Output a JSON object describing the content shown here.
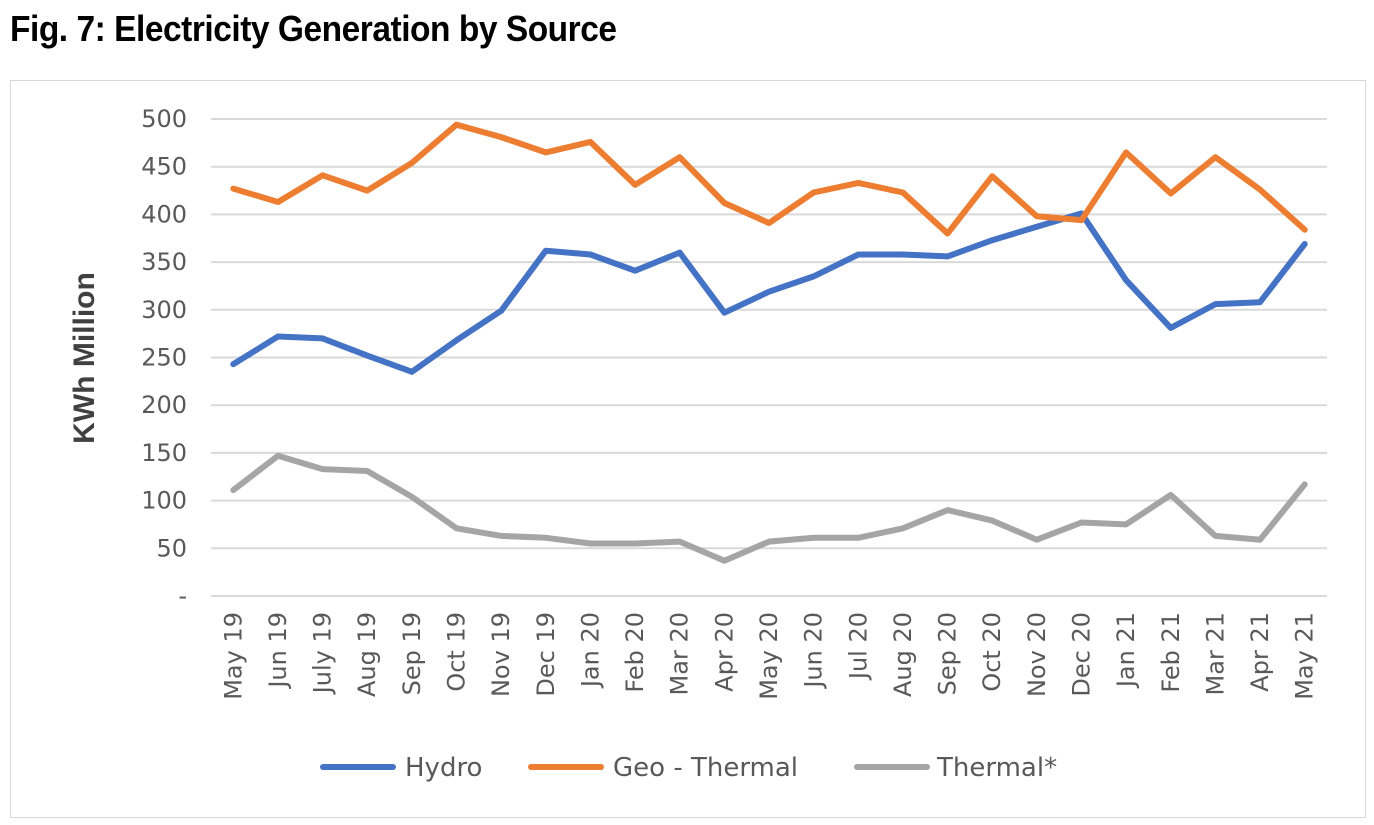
{
  "title": "Fig. 7: Electricity Generation by Source",
  "chart_data": {
    "type": "line",
    "title": "Fig. 7: Electricity Generation by Source",
    "xlabel": "",
    "ylabel": "KWh Million",
    "ylim": [
      0,
      500
    ],
    "yticks": [
      {
        "value": 0,
        "label": "-"
      },
      {
        "value": 50,
        "label": "50"
      },
      {
        "value": 100,
        "label": "100"
      },
      {
        "value": 150,
        "label": "150"
      },
      {
        "value": 200,
        "label": "200"
      },
      {
        "value": 250,
        "label": "250"
      },
      {
        "value": 300,
        "label": "300"
      },
      {
        "value": 350,
        "label": "350"
      },
      {
        "value": 400,
        "label": "400"
      },
      {
        "value": 450,
        "label": "450"
      },
      {
        "value": 500,
        "label": "500"
      }
    ],
    "grid": true,
    "legend_position": "bottom",
    "categories": [
      "May 19",
      "Jun 19",
      "July 19",
      "Aug 19",
      "Sep 19",
      "Oct 19",
      "Nov 19",
      "Dec 19",
      "Jan 20",
      "Feb 20",
      "Mar 20",
      "Apr 20",
      "May 20",
      "Jun 20",
      "Jul 20",
      "Aug 20",
      "Sep 20",
      "Oct 20",
      "Nov 20",
      "Dec 20",
      "Jan 21",
      "Feb 21",
      "Mar 21",
      "Apr 21",
      "May 21"
    ],
    "series": [
      {
        "name": "Hydro",
        "color": "#4472C4",
        "values": [
          243,
          272,
          270,
          252,
          235,
          268,
          299,
          362,
          358,
          341,
          360,
          297,
          319,
          335,
          358,
          358,
          356,
          373,
          387,
          401,
          331,
          281,
          306,
          308,
          369
        ]
      },
      {
        "name": "Geo - Thermal",
        "color": "#ED7D31",
        "values": [
          427,
          413,
          441,
          425,
          454,
          494,
          481,
          465,
          476,
          431,
          460,
          412,
          391,
          423,
          433,
          423,
          380,
          440,
          398,
          394,
          465,
          422,
          460,
          426,
          384
        ]
      },
      {
        "name": "Thermal*",
        "color": "#A5A5A5",
        "values": [
          111,
          147,
          133,
          131,
          104,
          71,
          63,
          61,
          55,
          55,
          57,
          37,
          57,
          61,
          61,
          71,
          90,
          79,
          59,
          77,
          75,
          106,
          63,
          59,
          117
        ]
      }
    ]
  }
}
